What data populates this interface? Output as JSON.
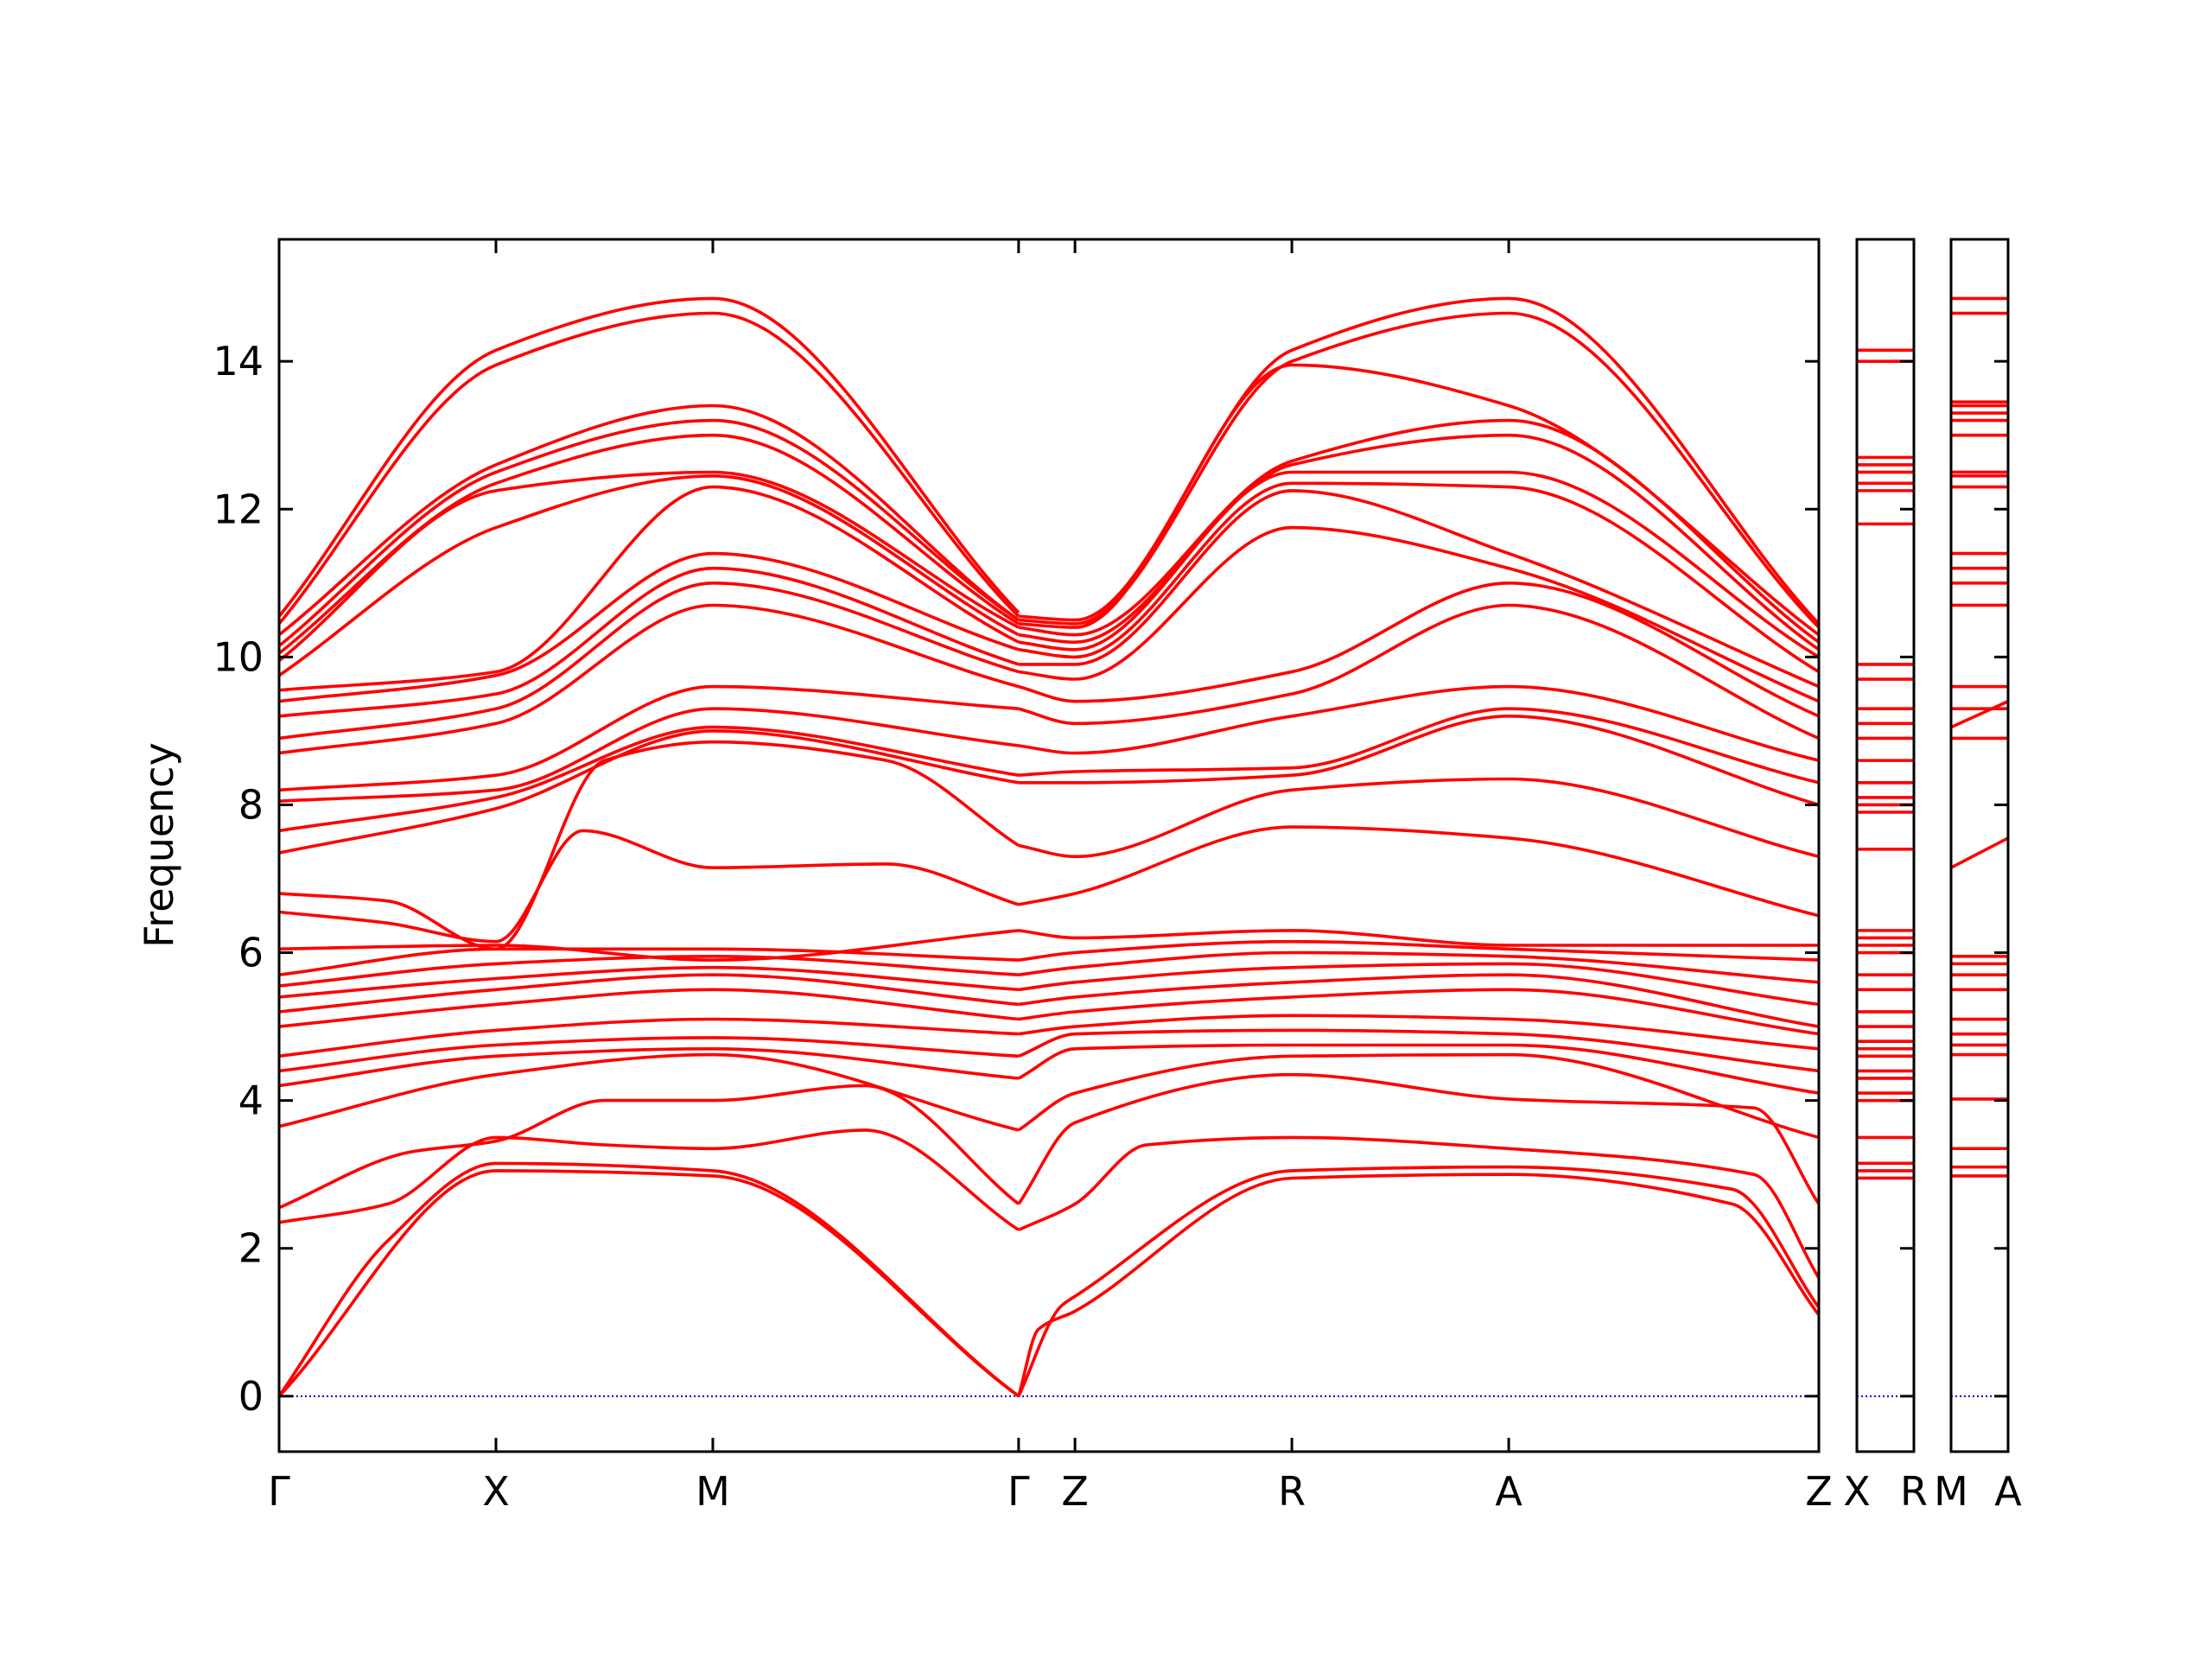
{
  "chart_data": {
    "type": "line",
    "ylabel": "Frequency",
    "ylim": [
      -0.75,
      15.65
    ],
    "grid": false,
    "legend": "none",
    "colors": {
      "bands": "#ff0000",
      "zero_line": "#0000cc"
    },
    "y_ticks": [
      0,
      2,
      4,
      6,
      8,
      10,
      12,
      14
    ],
    "panels": [
      {
        "name": "main",
        "xlim": [
          0,
          7.1
        ],
        "ticks": [
          {
            "x": 0,
            "label": "Γ"
          },
          {
            "x": 1,
            "label": "X"
          },
          {
            "x": 2,
            "label": "M"
          },
          {
            "x": 3.41,
            "label": "Γ"
          },
          {
            "x": 3.67,
            "label": "Z"
          },
          {
            "x": 4.67,
            "label": "R"
          },
          {
            "x": 5.67,
            "label": "A"
          },
          {
            "x": 7.1,
            "label": "Z"
          }
        ]
      },
      {
        "name": "X-R",
        "xlim": [
          0,
          0.26
        ],
        "ticks": [
          {
            "x": 0,
            "label": "X"
          },
          {
            "x": 0.26,
            "label": "R"
          }
        ]
      },
      {
        "name": "M-A",
        "xlim": [
          0,
          0.26
        ],
        "ticks": [
          {
            "x": 0,
            "label": "M"
          },
          {
            "x": 0.26,
            "label": "A"
          }
        ]
      }
    ],
    "series": [
      {
        "panel": "main",
        "x": [
          0,
          1,
          2,
          3.41
        ],
        "y": [
          0,
          3.05,
          2.98,
          0
        ]
      },
      {
        "panel": "main",
        "x": [
          0,
          0.5,
          1,
          2,
          3.41
        ],
        "y": [
          0,
          2.1,
          3.15,
          3.05,
          0
        ]
      },
      {
        "panel": "main",
        "x": [
          0,
          0.5,
          1,
          1.5,
          2,
          2.7,
          3.41
        ],
        "y": [
          2.35,
          2.6,
          3.5,
          3.4,
          3.35,
          3.6,
          2.25
        ]
      },
      {
        "panel": "main",
        "x": [
          0,
          0.6,
          1,
          1.5,
          2,
          2.7,
          3.41
        ],
        "y": [
          2.55,
          3.3,
          3.45,
          4.0,
          4.0,
          4.2,
          2.6
        ]
      },
      {
        "panel": "main",
        "x": [
          0,
          1,
          2,
          3.41
        ],
        "y": [
          3.65,
          4.35,
          4.62,
          3.6
        ]
      },
      {
        "panel": "main",
        "x": [
          0,
          1,
          2,
          3.41
        ],
        "y": [
          4.2,
          4.6,
          4.7,
          4.3
        ]
      },
      {
        "panel": "main",
        "x": [
          0,
          1,
          2,
          3.41
        ],
        "y": [
          4.4,
          4.75,
          4.85,
          4.6
        ]
      },
      {
        "panel": "main",
        "x": [
          0,
          1,
          2,
          3.41
        ],
        "y": [
          4.6,
          4.95,
          5.1,
          4.9
        ]
      },
      {
        "panel": "main",
        "x": [
          0,
          1,
          2,
          3.41
        ],
        "y": [
          5.0,
          5.3,
          5.5,
          5.1
        ]
      },
      {
        "panel": "main",
        "x": [
          0,
          1,
          2,
          3.41
        ],
        "y": [
          5.2,
          5.5,
          5.7,
          5.3
        ]
      },
      {
        "panel": "main",
        "x": [
          0,
          1,
          2,
          3.41
        ],
        "y": [
          5.4,
          5.65,
          5.8,
          5.5
        ]
      },
      {
        "panel": "main",
        "x": [
          0,
          1,
          2,
          3.41
        ],
        "y": [
          5.55,
          5.85,
          5.95,
          5.7
        ]
      },
      {
        "panel": "main",
        "x": [
          0,
          1,
          2,
          3.41
        ],
        "y": [
          5.7,
          6.05,
          6.05,
          5.9
        ]
      },
      {
        "panel": "main",
        "x": [
          0,
          1,
          2,
          3.41
        ],
        "y": [
          6.05,
          6.1,
          5.9,
          6.3
        ]
      },
      {
        "panel": "main",
        "x": [
          0,
          0.5,
          1,
          1.4,
          2,
          2.8,
          3.41
        ],
        "y": [
          6.55,
          6.4,
          6.15,
          7.65,
          7.15,
          7.2,
          6.65
        ]
      },
      {
        "panel": "main",
        "x": [
          0,
          0.5,
          1,
          1.5,
          2,
          2.8,
          3.41
        ],
        "y": [
          6.8,
          6.7,
          6.05,
          8.6,
          8.85,
          8.6,
          7.45
        ]
      },
      {
        "panel": "main",
        "x": [
          0,
          1,
          2,
          3.41
        ],
        "y": [
          7.35,
          7.95,
          9.0,
          8.3
        ]
      },
      {
        "panel": "main",
        "x": [
          0,
          1,
          2,
          3.41
        ],
        "y": [
          7.65,
          8.1,
          9.05,
          8.4
        ]
      },
      {
        "panel": "main",
        "x": [
          0,
          1,
          2,
          3.41
        ],
        "y": [
          8.05,
          8.2,
          9.3,
          8.8
        ]
      },
      {
        "panel": "main",
        "x": [
          0,
          1,
          2,
          3.41
        ],
        "y": [
          8.2,
          8.4,
          9.6,
          9.3
        ]
      },
      {
        "panel": "main",
        "x": [
          0,
          1,
          2,
          3.41
        ],
        "y": [
          8.7,
          9.1,
          10.7,
          9.6
        ]
      },
      {
        "panel": "main",
        "x": [
          0,
          1,
          2,
          3.41
        ],
        "y": [
          8.9,
          9.3,
          11.0,
          9.8
        ]
      },
      {
        "panel": "main",
        "x": [
          0,
          1,
          2,
          3.41
        ],
        "y": [
          9.2,
          9.5,
          11.2,
          9.9
        ]
      },
      {
        "panel": "main",
        "x": [
          0,
          1,
          2,
          3.41
        ],
        "y": [
          9.4,
          9.75,
          11.4,
          10.1
        ]
      },
      {
        "panel": "main",
        "x": [
          0,
          1,
          2,
          3.41
        ],
        "y": [
          9.55,
          9.8,
          12.3,
          10.2
        ]
      },
      {
        "panel": "main",
        "x": [
          0,
          1,
          2,
          3.41
        ],
        "y": [
          9.75,
          11.75,
          12.45,
          10.3
        ]
      },
      {
        "panel": "main",
        "x": [
          0,
          1,
          2,
          3.41
        ],
        "y": [
          9.95,
          12.25,
          12.5,
          10.4
        ]
      },
      {
        "panel": "main",
        "x": [
          0,
          1,
          2,
          3.41
        ],
        "y": [
          10.05,
          12.35,
          13.0,
          10.45
        ]
      },
      {
        "panel": "main",
        "x": [
          0,
          1,
          2,
          3.41
        ],
        "y": [
          10.15,
          12.5,
          13.2,
          10.5
        ]
      },
      {
        "panel": "main",
        "x": [
          0,
          1,
          2,
          3.41
        ],
        "y": [
          10.3,
          12.6,
          13.4,
          10.5
        ]
      },
      {
        "panel": "main",
        "x": [
          0,
          1,
          2,
          3.41
        ],
        "y": [
          10.45,
          13.95,
          14.65,
          10.55
        ]
      },
      {
        "panel": "main",
        "x": [
          0,
          1,
          2,
          3.41
        ],
        "y": [
          10.55,
          14.15,
          14.85,
          10.6
        ]
      },
      {
        "panel": "main",
        "x": [
          3.41,
          3.5,
          3.67,
          4.67,
          5.67,
          6.7,
          7.1
        ],
        "y": [
          0,
          0.9,
          1.15,
          2.95,
          3.0,
          2.6,
          1.1
        ]
      },
      {
        "panel": "main",
        "x": [
          3.41,
          3.6,
          3.67,
          4.67,
          5.67,
          6.7,
          7.1
        ],
        "y": [
          0,
          1.2,
          1.35,
          3.05,
          3.1,
          2.8,
          1.2
        ]
      },
      {
        "panel": "main",
        "x": [
          3.41,
          3.67,
          4.0,
          4.67,
          5.67,
          6.8,
          7.1
        ],
        "y": [
          2.25,
          2.6,
          3.4,
          3.5,
          3.35,
          3.0,
          1.6
        ]
      },
      {
        "panel": "main",
        "x": [
          3.41,
          3.67,
          4.67,
          5.67,
          6.8,
          7.1
        ],
        "y": [
          2.6,
          3.7,
          4.35,
          4.02,
          3.9,
          2.6
        ]
      },
      {
        "panel": "main",
        "x": [
          3.41,
          3.67,
          4.67,
          5.67,
          7.1
        ],
        "y": [
          3.6,
          4.1,
          4.6,
          4.62,
          3.5
        ]
      },
      {
        "panel": "main",
        "x": [
          3.41,
          3.67,
          4.67,
          5.67,
          7.1
        ],
        "y": [
          4.3,
          4.7,
          4.75,
          4.75,
          4.1
        ]
      },
      {
        "panel": "main",
        "x": [
          3.41,
          3.67,
          4.67,
          5.67,
          7.1
        ],
        "y": [
          4.6,
          4.9,
          4.95,
          4.9,
          4.4
        ]
      },
      {
        "panel": "main",
        "x": [
          3.41,
          3.67,
          4.67,
          5.67,
          7.1
        ],
        "y": [
          4.9,
          5.0,
          5.15,
          5.1,
          4.7
        ]
      },
      {
        "panel": "main",
        "x": [
          3.41,
          3.67,
          4.67,
          5.67,
          7.1
        ],
        "y": [
          5.1,
          5.2,
          5.4,
          5.5,
          4.9
        ]
      },
      {
        "panel": "main",
        "x": [
          3.41,
          3.67,
          4.67,
          5.67,
          7.1
        ],
        "y": [
          5.3,
          5.4,
          5.6,
          5.7,
          5.0
        ]
      },
      {
        "panel": "main",
        "x": [
          3.41,
          3.67,
          4.67,
          5.67,
          7.1
        ],
        "y": [
          5.5,
          5.6,
          5.8,
          5.85,
          5.3
        ]
      },
      {
        "panel": "main",
        "x": [
          3.41,
          3.67,
          4.67,
          5.67,
          7.1
        ],
        "y": [
          5.7,
          5.8,
          6.0,
          5.95,
          5.6
        ]
      },
      {
        "panel": "main",
        "x": [
          3.41,
          3.67,
          4.67,
          5.67,
          7.1
        ],
        "y": [
          5.9,
          6.0,
          6.15,
          6.05,
          5.9
        ]
      },
      {
        "panel": "main",
        "x": [
          3.41,
          3.67,
          4.67,
          5.67,
          7.1
        ],
        "y": [
          6.3,
          6.2,
          6.3,
          6.1,
          6.1
        ]
      },
      {
        "panel": "main",
        "x": [
          3.41,
          3.67,
          4.67,
          5.67,
          7.1
        ],
        "y": [
          6.65,
          6.8,
          7.7,
          7.55,
          6.5
        ]
      },
      {
        "panel": "main",
        "x": [
          3.41,
          3.67,
          4.67,
          5.67,
          7.1
        ],
        "y": [
          7.45,
          7.3,
          8.2,
          8.35,
          7.3
        ]
      },
      {
        "panel": "main",
        "x": [
          3.41,
          3.67,
          4.67,
          5.67,
          7.1
        ],
        "y": [
          8.3,
          8.3,
          8.4,
          9.2,
          8.0
        ]
      },
      {
        "panel": "main",
        "x": [
          3.41,
          3.67,
          4.67,
          5.67,
          7.1
        ],
        "y": [
          8.4,
          8.45,
          8.5,
          9.3,
          8.3
        ]
      },
      {
        "panel": "main",
        "x": [
          3.41,
          3.67,
          4.67,
          5.67,
          7.1
        ],
        "y": [
          8.8,
          8.7,
          9.2,
          9.6,
          8.6
        ]
      },
      {
        "panel": "main",
        "x": [
          3.41,
          3.67,
          4.67,
          5.67,
          7.1
        ],
        "y": [
          9.3,
          9.1,
          9.5,
          10.7,
          8.9
        ]
      },
      {
        "panel": "main",
        "x": [
          3.41,
          3.67,
          4.67,
          5.67,
          7.1
        ],
        "y": [
          9.6,
          9.4,
          9.8,
          11.0,
          9.2
        ]
      },
      {
        "panel": "main",
        "x": [
          3.41,
          3.67,
          4.67,
          5.67,
          7.1
        ],
        "y": [
          9.8,
          9.7,
          11.75,
          11.2,
          9.4
        ]
      },
      {
        "panel": "main",
        "x": [
          3.41,
          3.67,
          4.67,
          5.67,
          7.1
        ],
        "y": [
          9.9,
          9.9,
          12.25,
          11.4,
          9.6
        ]
      },
      {
        "panel": "main",
        "x": [
          3.41,
          3.67,
          4.67,
          5.67,
          7.1
        ],
        "y": [
          10.1,
          10.0,
          12.35,
          12.3,
          9.8
        ]
      },
      {
        "panel": "main",
        "x": [
          3.41,
          3.67,
          4.67,
          5.67,
          7.1
        ],
        "y": [
          10.2,
          10.1,
          12.5,
          12.5,
          10.0
        ]
      },
      {
        "panel": "main",
        "x": [
          3.41,
          3.67,
          4.67,
          5.67,
          7.1
        ],
        "y": [
          10.3,
          10.2,
          12.6,
          13.0,
          10.1
        ]
      },
      {
        "panel": "main",
        "x": [
          3.41,
          3.67,
          4.67,
          5.67,
          7.1
        ],
        "y": [
          10.4,
          10.3,
          12.65,
          13.2,
          10.2
        ]
      },
      {
        "panel": "main",
        "x": [
          3.41,
          3.67,
          4.67,
          5.67,
          7.1
        ],
        "y": [
          10.45,
          10.4,
          13.95,
          13.4,
          10.3
        ]
      },
      {
        "panel": "main",
        "x": [
          3.41,
          3.67,
          4.67,
          5.67,
          7.1
        ],
        "y": [
          10.5,
          10.45,
          14.0,
          14.65,
          10.4
        ]
      },
      {
        "panel": "main",
        "x": [
          3.41,
          3.67,
          4.67,
          5.67,
          7.1
        ],
        "y": [
          10.55,
          10.5,
          14.15,
          14.85,
          10.45
        ]
      }
    ],
    "flat_bands": [
      {
        "panel": "X-R",
        "y": [
          2.95,
          3.05,
          3.15,
          3.5,
          4.0,
          4.1,
          4.3,
          4.4,
          4.6,
          4.7,
          4.8,
          5.0,
          5.2,
          5.5,
          5.7,
          6.0,
          6.1,
          6.2,
          6.3,
          7.4,
          7.9,
          8.0,
          8.1,
          8.3,
          8.6,
          8.9,
          9.1,
          9.3,
          9.7,
          9.9,
          11.8,
          12.25,
          12.35,
          12.5,
          12.6,
          12.7,
          14.0,
          14.15
        ]
      },
      {
        "panel": "M-A",
        "y": [
          2.98,
          3.1,
          3.35,
          4.02,
          4.62,
          4.75,
          4.9,
          5.1,
          5.5,
          5.7,
          5.85,
          5.95,
          8.9,
          9.3,
          9.6,
          10.7,
          11.0,
          11.2,
          11.4,
          12.3,
          12.45,
          12.5,
          13.0,
          13.2,
          13.3,
          13.4,
          13.45,
          14.65,
          14.85
        ]
      },
      {
        "panel": "M-A",
        "y0": [
          7.15,
          9.05
        ],
        "y1": [
          7.55,
          9.4
        ]
      }
    ]
  }
}
